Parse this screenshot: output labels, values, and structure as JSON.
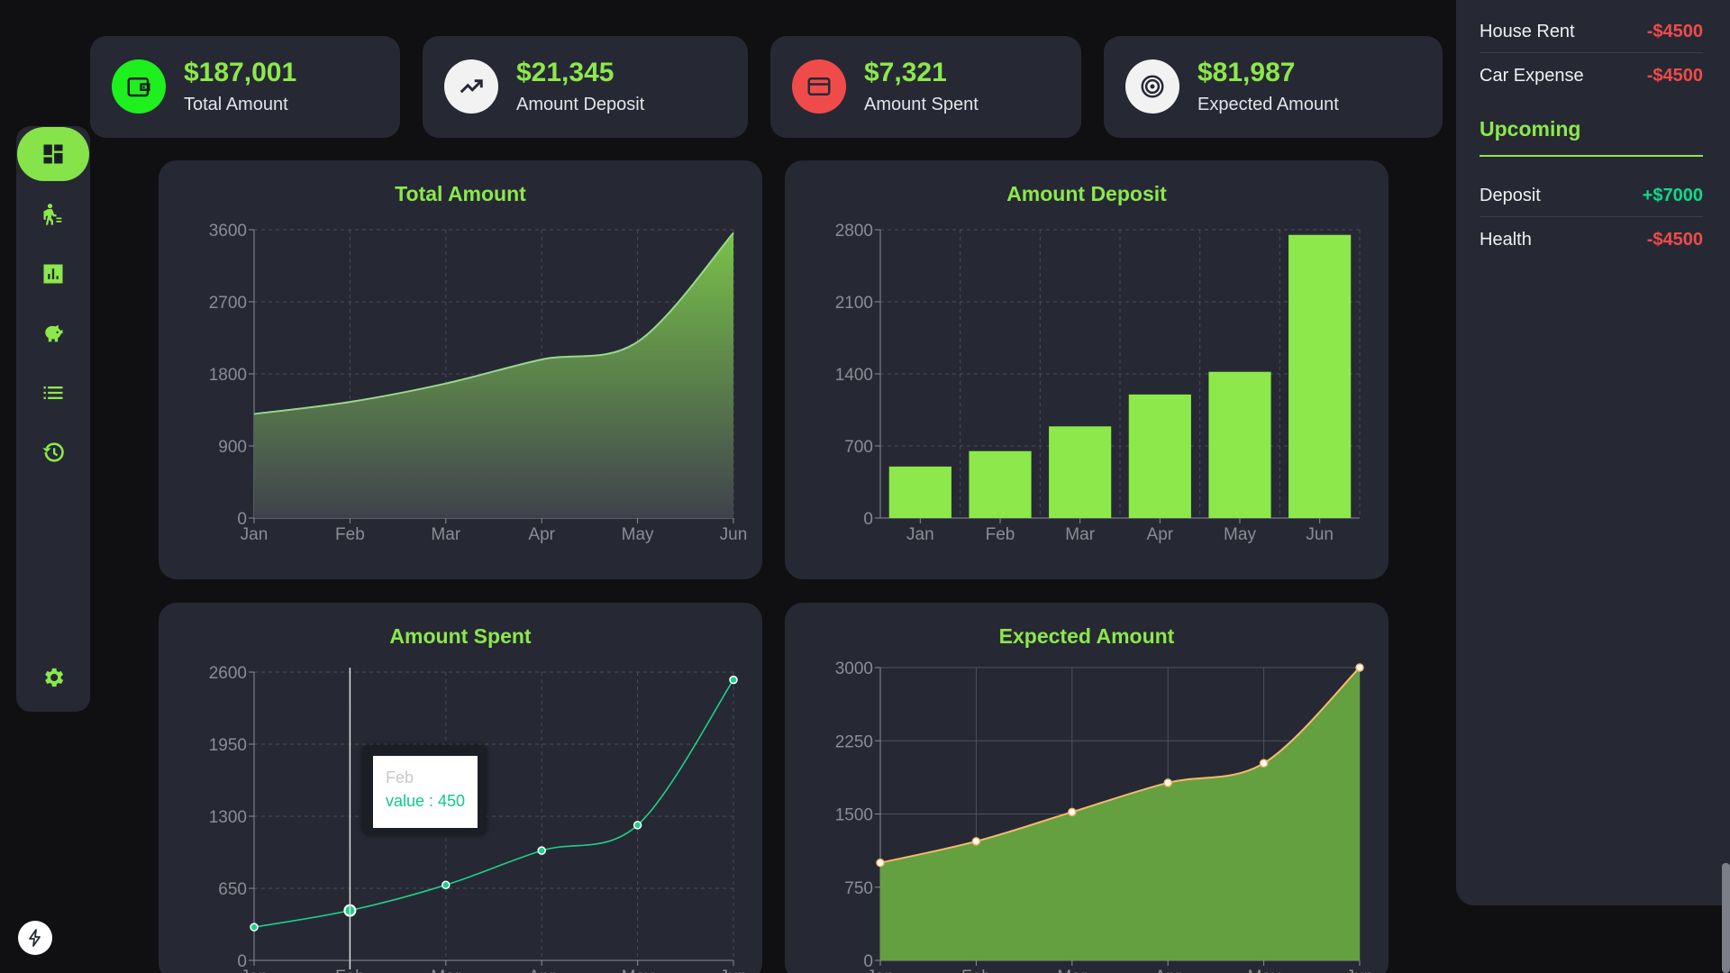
{
  "colors": {
    "accent": "#8ce84b",
    "card": "#262933",
    "background": "#101012",
    "negative": "#f04b4b",
    "positive": "#10d98a",
    "line_teal": "#1fcf8a",
    "orange_line": "#f7b86e",
    "bar": "#8ce84b"
  },
  "sidebar": {
    "items": [
      {
        "icon": "dashboard-icon",
        "active": true
      },
      {
        "icon": "person-transfer-icon",
        "active": false
      },
      {
        "icon": "bar-report-icon",
        "active": false
      },
      {
        "icon": "piggy-bank-icon",
        "active": false
      },
      {
        "icon": "list-icon",
        "active": false
      },
      {
        "icon": "history-icon",
        "active": false
      }
    ],
    "settings_icon": "gear-icon",
    "bottom_icon": "bolt-icon"
  },
  "stats": [
    {
      "value": "$187,001",
      "label": "Total Amount",
      "icon": "wallet-icon",
      "icon_bg": "#1ef01e"
    },
    {
      "value": "$21,345",
      "label": "Amount Deposit",
      "icon": "trending-up-icon",
      "icon_bg": "#f2f2f2"
    },
    {
      "value": "$7,321",
      "label": "Amount Spent",
      "icon": "credit-card-icon",
      "icon_bg": "#f04b4b"
    },
    {
      "value": "$81,987",
      "label": "Expected Amount",
      "icon": "target-icon",
      "icon_bg": "#f2f2f2"
    }
  ],
  "right_panel": {
    "recent": [
      {
        "name": "House Rent",
        "amount": "-$4500",
        "sign": "neg"
      },
      {
        "name": "Car Expense",
        "amount": "-$4500",
        "sign": "neg"
      }
    ],
    "upcoming_title": "Upcoming",
    "upcoming": [
      {
        "name": "Deposit",
        "amount": "+$7000",
        "sign": "pos"
      },
      {
        "name": "Health",
        "amount": "-$4500",
        "sign": "neg"
      }
    ]
  },
  "tooltip": {
    "month": "Feb",
    "value_text": "value : 450"
  },
  "chart_data": [
    {
      "type": "area",
      "title": "Total Amount",
      "x": [
        "Jan",
        "Feb",
        "Mar",
        "Apr",
        "May",
        "Jun"
      ],
      "series": [
        {
          "values": [
            1300,
            1450,
            1680,
            1980,
            2200,
            3560
          ]
        }
      ],
      "yticks": [
        0,
        900,
        1800,
        2700,
        3600
      ],
      "ylim": [
        0,
        3600
      ],
      "grid": "dashed"
    },
    {
      "type": "bar",
      "title": "Amount Deposit",
      "categories": [
        "Jan",
        "Feb",
        "Mar",
        "Apr",
        "May",
        "Jun"
      ],
      "values": [
        500,
        650,
        890,
        1200,
        1420,
        2750
      ],
      "yticks": [
        0,
        700,
        1400,
        2100,
        2800
      ],
      "ylim": [
        0,
        2800
      ],
      "grid": "dashed"
    },
    {
      "type": "line",
      "title": "Amount Spent",
      "x": [
        "Jan",
        "Feb",
        "Mar",
        "Apr",
        "May",
        "Jun"
      ],
      "series": [
        {
          "values": [
            300,
            450,
            680,
            990,
            1220,
            2530
          ]
        }
      ],
      "yticks": [
        0,
        650,
        1300,
        1950,
        2600
      ],
      "ylim": [
        0,
        2600
      ],
      "grid": "dashed",
      "highlight": "Feb"
    },
    {
      "type": "area",
      "title": "Expected Amount",
      "x": [
        "Jan",
        "Feb",
        "Mar",
        "Apr",
        "May",
        "Jun"
      ],
      "series": [
        {
          "values": [
            1000,
            1220,
            1520,
            1820,
            2020,
            3000
          ]
        }
      ],
      "yticks": [
        0,
        750,
        1500,
        2250,
        3000
      ],
      "ylim": [
        0,
        3000
      ],
      "grid": "solid"
    }
  ]
}
